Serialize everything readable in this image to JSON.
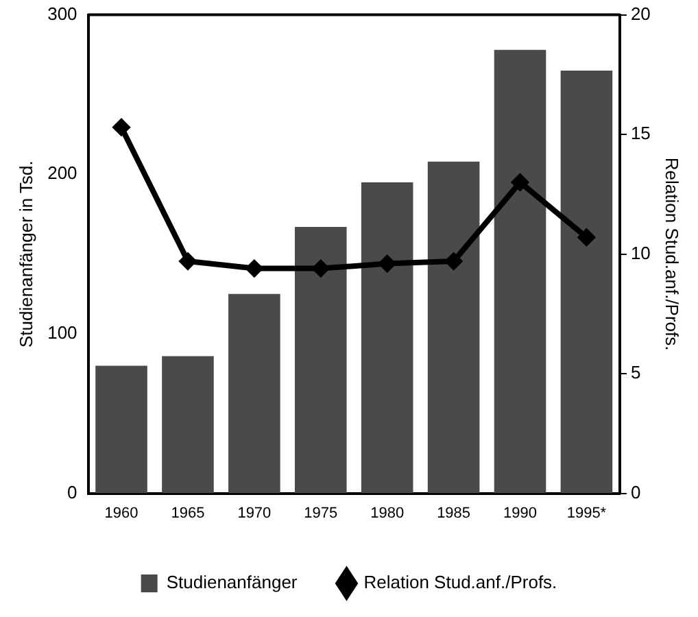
{
  "chart_data": {
    "type": "bar",
    "ylabel": "Studienanfänger in Tsd.",
    "y2label": "Relation Stud.anf./Profs.",
    "categories": [
      "1960",
      "1965",
      "1970",
      "1975",
      "1980",
      "1985",
      "1990",
      "1995*"
    ],
    "series": [
      {
        "name": "Studienanfänger",
        "color": "#4a4a4a",
        "values": [
          80,
          86,
          125,
          167,
          195,
          208,
          278,
          265
        ]
      },
      {
        "name": "Relation Stud.anf./Profs.",
        "type": "line",
        "axis": "y2",
        "color": "#000000",
        "marker": "diamond",
        "values": [
          15.3,
          9.7,
          9.4,
          9.4,
          9.6,
          9.7,
          13.0,
          10.7
        ]
      }
    ],
    "ylim": [
      0,
      300
    ],
    "yticks": [
      0,
      100,
      200,
      300
    ],
    "y2lim": [
      0,
      20
    ],
    "y2ticks": [
      0,
      5,
      10,
      15,
      20
    ],
    "grid": false,
    "legend": "bottom"
  }
}
